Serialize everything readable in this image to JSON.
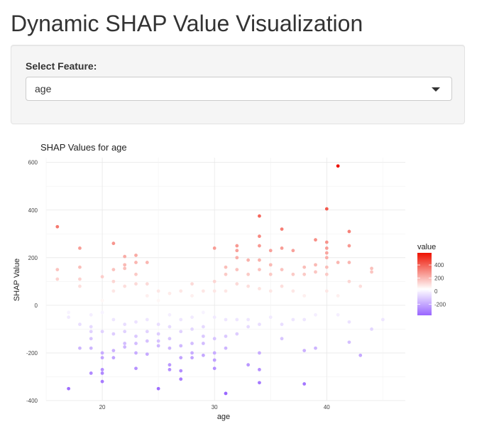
{
  "page": {
    "title": "Dynamic SHAP Value Visualization"
  },
  "control": {
    "label": "Select Feature:",
    "selected": "age"
  },
  "chart_data": {
    "type": "scatter",
    "title": "SHAP Values for age",
    "xlabel": "age",
    "ylabel": "SHAP Value",
    "xlim": [
      15,
      47
    ],
    "ylim": [
      -400,
      620
    ],
    "xticks": [
      20,
      30,
      40
    ],
    "yticks": [
      -400,
      -200,
      0,
      200,
      400,
      600
    ],
    "grid": true,
    "legend": {
      "title": "value",
      "ticks": [
        400,
        200,
        0,
        -200
      ],
      "low_color": "#9966ff",
      "mid_color": "#ffffff",
      "high_color": "#ee1100",
      "placement": "right"
    },
    "points": [
      {
        "x": 16,
        "y": 330
      },
      {
        "x": 16,
        "y": 150
      },
      {
        "x": 16,
        "y": 110
      },
      {
        "x": 17,
        "y": -30
      },
      {
        "x": 17,
        "y": -50
      },
      {
        "x": 17,
        "y": -350
      },
      {
        "x": 18,
        "y": 240
      },
      {
        "x": 18,
        "y": 160
      },
      {
        "x": 18,
        "y": 110
      },
      {
        "x": 18,
        "y": 80
      },
      {
        "x": 18,
        "y": -80
      },
      {
        "x": 18,
        "y": -180
      },
      {
        "x": 19,
        "y": -40
      },
      {
        "x": 19,
        "y": -90
      },
      {
        "x": 19,
        "y": -110
      },
      {
        "x": 19,
        "y": -140
      },
      {
        "x": 19,
        "y": -180
      },
      {
        "x": 19,
        "y": -285
      },
      {
        "x": 20,
        "y": 120
      },
      {
        "x": 20,
        "y": 20
      },
      {
        "x": 20,
        "y": -30
      },
      {
        "x": 20,
        "y": -110
      },
      {
        "x": 20,
        "y": -200
      },
      {
        "x": 20,
        "y": -220
      },
      {
        "x": 20,
        "y": -270
      },
      {
        "x": 20,
        "y": -285
      },
      {
        "x": 20,
        "y": -320
      },
      {
        "x": 21,
        "y": 260
      },
      {
        "x": 21,
        "y": 150
      },
      {
        "x": 21,
        "y": 100
      },
      {
        "x": 21,
        "y": 60
      },
      {
        "x": 21,
        "y": -60
      },
      {
        "x": 21,
        "y": -120
      },
      {
        "x": 21,
        "y": -190
      },
      {
        "x": 21,
        "y": -220
      },
      {
        "x": 22,
        "y": 205
      },
      {
        "x": 22,
        "y": 170
      },
      {
        "x": 22,
        "y": 155
      },
      {
        "x": 22,
        "y": 80
      },
      {
        "x": 22,
        "y": -80
      },
      {
        "x": 22,
        "y": -110
      },
      {
        "x": 22,
        "y": -160
      },
      {
        "x": 22,
        "y": -175
      },
      {
        "x": 23,
        "y": 210
      },
      {
        "x": 23,
        "y": 180
      },
      {
        "x": 23,
        "y": 130
      },
      {
        "x": 23,
        "y": 90
      },
      {
        "x": 23,
        "y": -70
      },
      {
        "x": 23,
        "y": -130
      },
      {
        "x": 23,
        "y": -160
      },
      {
        "x": 23,
        "y": -200
      },
      {
        "x": 23,
        "y": -265
      },
      {
        "x": 24,
        "y": 180
      },
      {
        "x": 24,
        "y": 90
      },
      {
        "x": 24,
        "y": 40
      },
      {
        "x": 24,
        "y": -60
      },
      {
        "x": 24,
        "y": -110
      },
      {
        "x": 24,
        "y": -150
      },
      {
        "x": 24,
        "y": -205
      },
      {
        "x": 25,
        "y": 60
      },
      {
        "x": 25,
        "y": 20
      },
      {
        "x": 25,
        "y": -80
      },
      {
        "x": 25,
        "y": -120
      },
      {
        "x": 25,
        "y": -150
      },
      {
        "x": 25,
        "y": -170
      },
      {
        "x": 25,
        "y": -350
      },
      {
        "x": 26,
        "y": 50
      },
      {
        "x": 26,
        "y": -40
      },
      {
        "x": 26,
        "y": -90
      },
      {
        "x": 26,
        "y": -140
      },
      {
        "x": 26,
        "y": -180
      },
      {
        "x": 26,
        "y": -250
      },
      {
        "x": 26,
        "y": -270
      },
      {
        "x": 27,
        "y": 60
      },
      {
        "x": 27,
        "y": -60
      },
      {
        "x": 27,
        "y": -110
      },
      {
        "x": 27,
        "y": -170
      },
      {
        "x": 27,
        "y": -220
      },
      {
        "x": 27,
        "y": -275
      },
      {
        "x": 27,
        "y": -310
      },
      {
        "x": 28,
        "y": 90
      },
      {
        "x": 28,
        "y": 40
      },
      {
        "x": 28,
        "y": -50
      },
      {
        "x": 28,
        "y": -100
      },
      {
        "x": 28,
        "y": -160
      },
      {
        "x": 28,
        "y": -200
      },
      {
        "x": 28,
        "y": -220
      },
      {
        "x": 29,
        "y": 60
      },
      {
        "x": 29,
        "y": -30
      },
      {
        "x": 29,
        "y": -90
      },
      {
        "x": 29,
        "y": -130
      },
      {
        "x": 29,
        "y": -160
      },
      {
        "x": 29,
        "y": -210
      },
      {
        "x": 30,
        "y": 240
      },
      {
        "x": 30,
        "y": 100
      },
      {
        "x": 30,
        "y": 60
      },
      {
        "x": 30,
        "y": -50
      },
      {
        "x": 30,
        "y": -140
      },
      {
        "x": 30,
        "y": -200
      },
      {
        "x": 30,
        "y": -230
      },
      {
        "x": 30,
        "y": -265
      },
      {
        "x": 31,
        "y": 160
      },
      {
        "x": 31,
        "y": 130
      },
      {
        "x": 31,
        "y": 60
      },
      {
        "x": 31,
        "y": -60
      },
      {
        "x": 31,
        "y": -130
      },
      {
        "x": 31,
        "y": -180
      },
      {
        "x": 31,
        "y": -370
      },
      {
        "x": 32,
        "y": 250
      },
      {
        "x": 32,
        "y": 230
      },
      {
        "x": 32,
        "y": 200
      },
      {
        "x": 32,
        "y": 150
      },
      {
        "x": 32,
        "y": 90
      },
      {
        "x": 32,
        "y": -60
      },
      {
        "x": 32,
        "y": -120
      },
      {
        "x": 33,
        "y": 190
      },
      {
        "x": 33,
        "y": 130
      },
      {
        "x": 33,
        "y": 80
      },
      {
        "x": 33,
        "y": -60
      },
      {
        "x": 33,
        "y": -90
      },
      {
        "x": 33,
        "y": -250
      },
      {
        "x": 34,
        "y": 375
      },
      {
        "x": 34,
        "y": 290
      },
      {
        "x": 34,
        "y": 250
      },
      {
        "x": 34,
        "y": 190
      },
      {
        "x": 34,
        "y": 150
      },
      {
        "x": 34,
        "y": 70
      },
      {
        "x": 34,
        "y": -80
      },
      {
        "x": 34,
        "y": -200
      },
      {
        "x": 34,
        "y": -270
      },
      {
        "x": 34,
        "y": -325
      },
      {
        "x": 35,
        "y": 230
      },
      {
        "x": 35,
        "y": 170
      },
      {
        "x": 35,
        "y": 130
      },
      {
        "x": 35,
        "y": 60
      },
      {
        "x": 35,
        "y": -50
      },
      {
        "x": 36,
        "y": 320
      },
      {
        "x": 36,
        "y": 240
      },
      {
        "x": 36,
        "y": 150
      },
      {
        "x": 36,
        "y": 80
      },
      {
        "x": 36,
        "y": -80
      },
      {
        "x": 36,
        "y": -140
      },
      {
        "x": 37,
        "y": 230
      },
      {
        "x": 37,
        "y": 130
      },
      {
        "x": 37,
        "y": 60
      },
      {
        "x": 37,
        "y": -60
      },
      {
        "x": 38,
        "y": 160
      },
      {
        "x": 38,
        "y": 130
      },
      {
        "x": 38,
        "y": 40
      },
      {
        "x": 38,
        "y": -60
      },
      {
        "x": 38,
        "y": -190
      },
      {
        "x": 38,
        "y": -330
      },
      {
        "x": 39,
        "y": 275
      },
      {
        "x": 39,
        "y": 170
      },
      {
        "x": 39,
        "y": 140
      },
      {
        "x": 39,
        "y": -40
      },
      {
        "x": 39,
        "y": -180
      },
      {
        "x": 40,
        "y": 405
      },
      {
        "x": 40,
        "y": 265
      },
      {
        "x": 40,
        "y": 240
      },
      {
        "x": 40,
        "y": 220
      },
      {
        "x": 40,
        "y": 200
      },
      {
        "x": 40,
        "y": 160
      },
      {
        "x": 40,
        "y": 130
      },
      {
        "x": 40,
        "y": 60
      },
      {
        "x": 41,
        "y": 585
      },
      {
        "x": 41,
        "y": 180
      },
      {
        "x": 41,
        "y": 40
      },
      {
        "x": 41,
        "y": -40
      },
      {
        "x": 42,
        "y": 310
      },
      {
        "x": 42,
        "y": 250
      },
      {
        "x": 42,
        "y": 180
      },
      {
        "x": 42,
        "y": 100
      },
      {
        "x": 42,
        "y": -70
      },
      {
        "x": 42,
        "y": -155
      },
      {
        "x": 43,
        "y": 80
      },
      {
        "x": 43,
        "y": -210
      },
      {
        "x": 44,
        "y": 155
      },
      {
        "x": 44,
        "y": 140
      },
      {
        "x": 44,
        "y": -100
      },
      {
        "x": 45,
        "y": -60
      }
    ]
  }
}
